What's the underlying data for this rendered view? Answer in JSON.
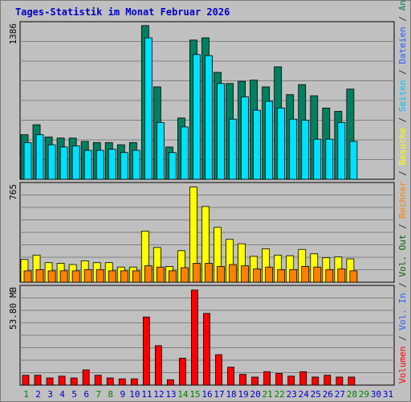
{
  "chart_data": {
    "type": "bar",
    "title": "Tages-Statistik im Monat Februar 2026",
    "days": [
      "1",
      "2",
      "3",
      "4",
      "5",
      "6",
      "7",
      "8",
      "9",
      "10",
      "11",
      "12",
      "13",
      "14",
      "15",
      "16",
      "17",
      "18",
      "19",
      "20",
      "21",
      "22",
      "23",
      "24",
      "25",
      "26",
      "27",
      "28",
      "29",
      "30",
      "31"
    ],
    "weekend_days": [
      "1",
      "7",
      "8",
      "14",
      "15",
      "21",
      "22",
      "28",
      "29"
    ],
    "panels": [
      {
        "name": "top",
        "max_label": "1386",
        "max": 1386,
        "series": [
          {
            "name": "Anfragen",
            "color": "#008060",
            "values": [
              400,
              490,
              380,
              370,
              370,
              340,
              330,
              330,
              310,
              330,
              1380,
              830,
              290,
              550,
              1250,
              1270,
              960,
              860,
              880,
              890,
              830,
              1010,
              760,
              850,
              750,
              640,
              610,
              810,
              0,
              0,
              0
            ]
          },
          {
            "name": "Dateien",
            "color": "#00e0ff",
            "values": [
              330,
              400,
              310,
              290,
              300,
              260,
              260,
              270,
              240,
              260,
              1270,
              510,
              240,
              470,
              1120,
              1110,
              860,
              540,
              740,
              620,
              700,
              640,
              540,
              530,
              360,
              360,
              510,
              340,
              0,
              0,
              0
            ]
          }
        ]
      },
      {
        "name": "middle",
        "max_label": "765",
        "max": 765,
        "series": [
          {
            "name": "Besuche",
            "color": "#ffff00",
            "values": [
              180,
              215,
              155,
              150,
              140,
              170,
              155,
              155,
              120,
              120,
              405,
              275,
              125,
              250,
              755,
              600,
              435,
              340,
              305,
              205,
              265,
              215,
              210,
              260,
              225,
              195,
              200,
              185,
              0,
              0,
              0
            ]
          },
          {
            "name": "Rechner",
            "color": "#ff8000",
            "values": [
              90,
              100,
              90,
              90,
              90,
              100,
              100,
              90,
              90,
              90,
              130,
              120,
              90,
              115,
              150,
              150,
              125,
              140,
              130,
              105,
              120,
              100,
              100,
              125,
              120,
              100,
              105,
              90,
              0,
              0,
              0
            ]
          }
        ]
      },
      {
        "name": "bottom",
        "max_label": "53.80 MB",
        "max": 53.8,
        "series": [
          {
            "name": "Volumen",
            "color": "#ff0000",
            "values": [
              5.5,
              5.5,
              4.0,
              5.0,
              4.0,
              8.5,
              5.5,
              4.0,
              3.5,
              3.5,
              38.0,
              22.0,
              3.0,
              15.0,
              53.0,
              40.0,
              17.0,
              10.0,
              6.0,
              4.5,
              7.5,
              6.5,
              5.0,
              7.5,
              4.5,
              5.5,
              4.5,
              4.5,
              0,
              0,
              0
            ]
          }
        ]
      }
    ],
    "legend_right": [
      {
        "text": "Volumen",
        "color": "#ff0000"
      },
      {
        "text": " / ",
        "color": "#333333"
      },
      {
        "text": "Vol. In",
        "color": "#2060ff"
      },
      {
        "text": " / ",
        "color": "#333333"
      },
      {
        "text": "Vol. Out",
        "color": "#006600"
      },
      {
        "text": " / ",
        "color": "#333333"
      },
      {
        "text": "Rechner",
        "color": "#ff8000"
      },
      {
        "text": " / ",
        "color": "#333333"
      },
      {
        "text": "Besuche",
        "color": "#ffff00"
      },
      {
        "text": " / ",
        "color": "#333333"
      },
      {
        "text": "Seiten",
        "color": "#00c0ff"
      },
      {
        "text": " / ",
        "color": "#333333"
      },
      {
        "text": "Dateien",
        "color": "#2060ff"
      },
      {
        "text": " / ",
        "color": "#333333"
      },
      {
        "text": "Anfragen",
        "color": "#008060"
      }
    ],
    "colors": {
      "weekday_label": "#0000cc",
      "weekend_label": "#008000",
      "panel_bg": "#c0c0c0",
      "gridline": "#808080"
    }
  }
}
